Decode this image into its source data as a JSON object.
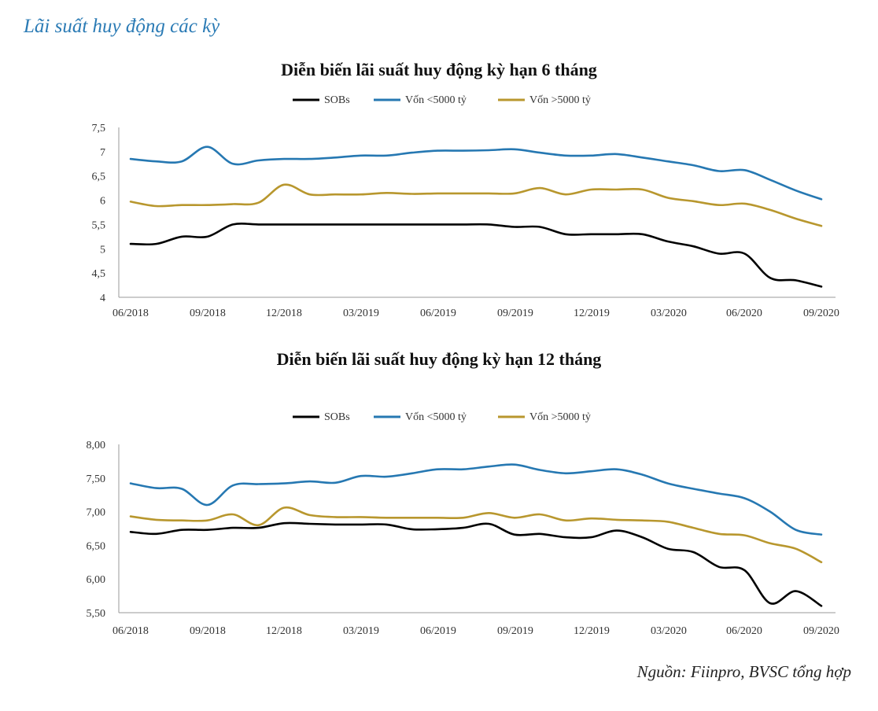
{
  "heading": "Lãi suất huy động các kỳ",
  "source": "Nguồn: Fiinpro, BVSC tổng hợp",
  "chart_data": [
    {
      "type": "line",
      "title": "Diễn biến lãi suất huy động kỳ hạn 6 tháng",
      "xlabel": "",
      "ylabel": "",
      "x_tick_labels": [
        "06/2018",
        "09/2018",
        "12/2018",
        "03/2019",
        "06/2019",
        "09/2019",
        "12/2019",
        "03/2020",
        "06/2020",
        "09/2020"
      ],
      "y_tick_labels": [
        "4",
        "4,5",
        "5",
        "5,5",
        "6",
        "6,5",
        "7",
        "7,5"
      ],
      "ylim": [
        4,
        7.5
      ],
      "x_range": [
        0,
        27
      ],
      "legend_position": "top-center",
      "series": [
        {
          "name": "SOBs",
          "color": "#000000",
          "x": [
            0,
            1,
            2,
            3,
            4,
            5,
            6,
            7,
            8,
            9,
            10,
            11,
            12,
            13,
            14,
            15,
            16,
            17,
            18,
            19,
            20,
            21,
            22,
            23,
            24,
            25,
            26,
            27
          ],
          "values": [
            5.1,
            5.1,
            5.25,
            5.25,
            5.5,
            5.5,
            5.5,
            5.5,
            5.5,
            5.5,
            5.5,
            5.5,
            5.5,
            5.5,
            5.5,
            5.45,
            5.45,
            5.3,
            5.3,
            5.3,
            5.3,
            5.15,
            5.05,
            4.9,
            4.9,
            4.4,
            4.35,
            4.22
          ]
        },
        {
          "name": "Vốn <5000 tỷ",
          "color": "#2678b2",
          "x": [
            0,
            1,
            2,
            3,
            4,
            5,
            6,
            7,
            8,
            9,
            10,
            11,
            12,
            13,
            14,
            15,
            16,
            17,
            18,
            19,
            20,
            21,
            22,
            23,
            24,
            25,
            26,
            27
          ],
          "values": [
            6.85,
            6.8,
            6.8,
            7.1,
            6.75,
            6.82,
            6.85,
            6.85,
            6.88,
            6.92,
            6.92,
            6.98,
            7.02,
            7.02,
            7.03,
            7.05,
            6.98,
            6.92,
            6.92,
            6.95,
            6.88,
            6.8,
            6.72,
            6.6,
            6.62,
            6.42,
            6.2,
            6.02
          ]
        },
        {
          "name": "Vốn >5000 tỷ",
          "color": "#b8972e",
          "x": [
            0,
            1,
            2,
            3,
            4,
            5,
            6,
            7,
            8,
            9,
            10,
            11,
            12,
            13,
            14,
            15,
            16,
            17,
            18,
            19,
            20,
            21,
            22,
            23,
            24,
            25,
            26,
            27
          ],
          "values": [
            5.97,
            5.88,
            5.9,
            5.9,
            5.92,
            5.95,
            6.32,
            6.12,
            6.12,
            6.12,
            6.15,
            6.13,
            6.14,
            6.14,
            6.14,
            6.14,
            6.25,
            6.12,
            6.22,
            6.22,
            6.22,
            6.05,
            5.98,
            5.9,
            5.93,
            5.8,
            5.62,
            5.47
          ]
        }
      ]
    },
    {
      "type": "line",
      "title": "Diễn biến lãi suất huy động kỳ hạn 12 tháng",
      "xlabel": "",
      "ylabel": "",
      "x_tick_labels": [
        "06/2018",
        "09/2018",
        "12/2018",
        "03/2019",
        "06/2019",
        "09/2019",
        "12/2019",
        "03/2020",
        "06/2020",
        "09/2020"
      ],
      "y_tick_labels": [
        "5,50",
        "6,00",
        "6,50",
        "7,00",
        "7,50",
        "8,00"
      ],
      "ylim": [
        5.5,
        8.0
      ],
      "x_range": [
        0,
        27
      ],
      "legend_position": "top-center",
      "series": [
        {
          "name": "SOBs",
          "color": "#000000",
          "x": [
            0,
            1,
            2,
            3,
            4,
            5,
            6,
            7,
            8,
            9,
            10,
            11,
            12,
            13,
            14,
            15,
            16,
            17,
            18,
            19,
            20,
            21,
            22,
            23,
            24,
            25,
            26,
            27
          ],
          "values": [
            6.7,
            6.67,
            6.73,
            6.73,
            6.76,
            6.76,
            6.83,
            6.82,
            6.81,
            6.81,
            6.81,
            6.74,
            6.74,
            6.76,
            6.82,
            6.66,
            6.67,
            6.62,
            6.62,
            6.72,
            6.62,
            6.45,
            6.4,
            6.18,
            6.13,
            5.64,
            5.82,
            5.6
          ]
        },
        {
          "name": "Vốn <5000 tỷ",
          "color": "#2678b2",
          "x": [
            0,
            1,
            2,
            3,
            4,
            5,
            6,
            7,
            8,
            9,
            10,
            11,
            12,
            13,
            14,
            15,
            16,
            17,
            18,
            19,
            20,
            21,
            22,
            23,
            24,
            25,
            26,
            27
          ],
          "values": [
            7.42,
            7.35,
            7.34,
            7.1,
            7.39,
            7.41,
            7.42,
            7.45,
            7.43,
            7.53,
            7.52,
            7.57,
            7.63,
            7.63,
            7.67,
            7.7,
            7.62,
            7.57,
            7.6,
            7.63,
            7.55,
            7.42,
            7.34,
            7.27,
            7.2,
            7.0,
            6.73,
            6.66
          ]
        },
        {
          "name": "Vốn >5000 tỷ",
          "color": "#b8972e",
          "x": [
            0,
            1,
            2,
            3,
            4,
            5,
            6,
            7,
            8,
            9,
            10,
            11,
            12,
            13,
            14,
            15,
            16,
            17,
            18,
            19,
            20,
            21,
            22,
            23,
            24,
            25,
            26,
            27
          ],
          "values": [
            6.93,
            6.88,
            6.87,
            6.87,
            6.96,
            6.8,
            7.06,
            6.95,
            6.92,
            6.92,
            6.91,
            6.91,
            6.91,
            6.91,
            6.98,
            6.91,
            6.96,
            6.87,
            6.9,
            6.88,
            6.87,
            6.85,
            6.76,
            6.67,
            6.65,
            6.53,
            6.45,
            6.25
          ]
        }
      ]
    }
  ]
}
